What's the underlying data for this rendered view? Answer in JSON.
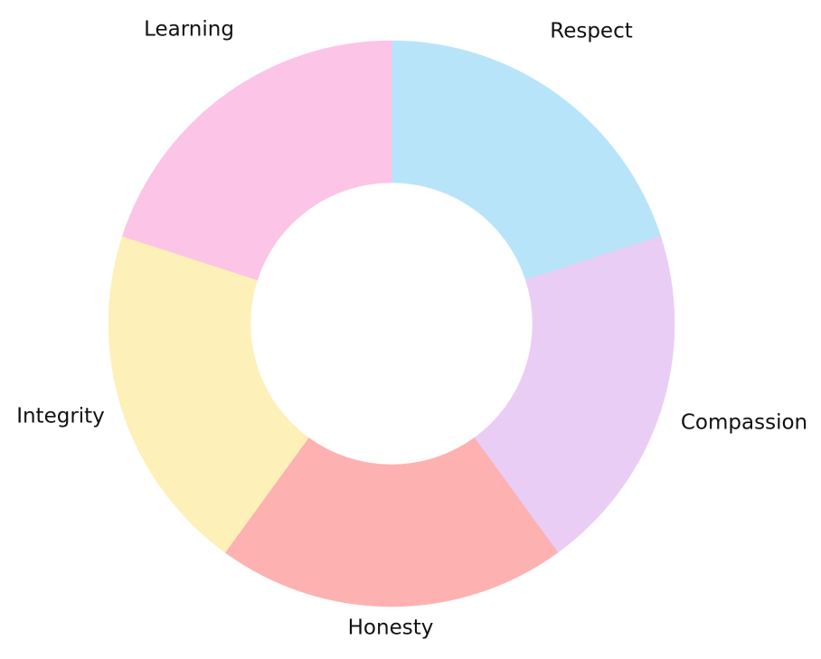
{
  "chart_data": {
    "type": "donut",
    "categories": [
      "Respect",
      "Compassion",
      "Honesty",
      "Integrity",
      "Learning"
    ],
    "values": [
      20,
      20,
      20,
      20,
      20
    ],
    "colors": [
      "#b8e4fa",
      "#eacdf5",
      "#fdb1b1",
      "#fdf0b8",
      "#fcc4e6"
    ]
  }
}
